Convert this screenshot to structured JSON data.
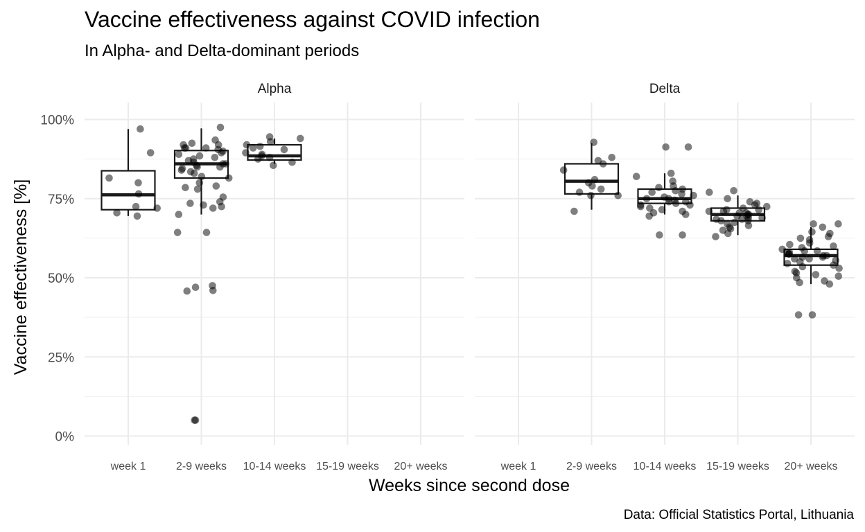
{
  "chart_data": {
    "type": "box+jitter",
    "title": "Vaccine effectiveness against COVID infection",
    "subtitle": "In Alpha- and Delta-dominant periods",
    "xlabel": "Weeks since second dose",
    "ylabel": "Vaccine effectiveness [%]",
    "caption": "Data: Official Statistics Portal, Lithuania",
    "ylim": [
      0,
      100
    ],
    "yticks": [
      "0%",
      "25%",
      "50%",
      "75%",
      "100%"
    ],
    "ytick_values": [
      0,
      25,
      50,
      75,
      100
    ],
    "categories": [
      "week 1",
      "2-9 weeks",
      "10-14 weeks",
      "15-19 weeks",
      "20+ weeks"
    ],
    "grid": true,
    "facets": [
      {
        "name": "Alpha",
        "boxes": [
          {
            "category": "week 1",
            "min": 69.5,
            "q1": 71.5,
            "median": 76.2,
            "q3": 83.8,
            "max": 97
          },
          {
            "category": "2-9 weeks",
            "min": 70,
            "q1": 81.5,
            "median": 86,
            "q3": 90.2,
            "max": 97.2
          },
          {
            "category": "10-14 weeks",
            "min": 86,
            "q1": 87.2,
            "median": 88.5,
            "q3": 92,
            "max": 94
          }
        ],
        "points": [
          {
            "category": "week 1",
            "values": [
              69.5,
              70.5,
              72.5,
              72,
              76.5,
              80,
              81.5,
              89.5,
              97
            ]
          },
          {
            "category": "2-9 weeks",
            "values": [
              97.5,
              93.5,
              92.5,
              92,
              92,
              91,
              91,
              91,
              90.5,
              90,
              89.5,
              89,
              88.5,
              88,
              87.5,
              87,
              86.5,
              86,
              86,
              85.5,
              85,
              85,
              84.5,
              84,
              83.5,
              83,
              82,
              81.5,
              80,
              79,
              78.5,
              78,
              75.5,
              74,
              73.5,
              73,
              72.5,
              72,
              70,
              64.3,
              64.3,
              47.5,
              47,
              46,
              45.8,
              5,
              5
            ]
          },
          {
            "category": "10-14 weeks",
            "values": [
              94.5,
              94,
              93,
              92,
              91.5,
              91,
              90.5,
              89.5,
              89,
              88.5,
              88,
              87.5,
              86.5,
              85.5
            ]
          }
        ]
      },
      {
        "name": "Delta",
        "boxes": [
          {
            "category": "2-9 weeks",
            "min": 71.5,
            "q1": 76.5,
            "median": 80.5,
            "q3": 86,
            "max": 92.5
          },
          {
            "category": "10-14 weeks",
            "min": 70,
            "q1": 73.5,
            "median": 75,
            "q3": 78,
            "max": 83
          },
          {
            "category": "15-19 weeks",
            "min": 63.5,
            "q1": 68,
            "median": 70,
            "q3": 72,
            "max": 76
          },
          {
            "category": "20+ weeks",
            "min": 48,
            "q1": 54,
            "median": 57,
            "q3": 59,
            "max": 66
          }
        ],
        "points": [
          {
            "category": "2-9 weeks",
            "values": [
              92.8,
              88,
              87,
              86,
              84,
              81,
              80,
              79,
              78,
              77,
              76,
              76,
              71
            ]
          },
          {
            "category": "10-14 weeks",
            "values": [
              91.3,
              91.3,
              83,
              82,
              80.5,
              79,
              78.5,
              78,
              77.5,
              77,
              76.5,
              76,
              75.5,
              75,
              75,
              74.5,
              74,
              74,
              73.5,
              73,
              73,
              72.5,
              72,
              71.5,
              71,
              70.5,
              70,
              69.5,
              63.5,
              63.5
            ]
          },
          {
            "category": "15-19 weeks",
            "values": [
              77.5,
              77,
              75,
              74,
              73.5,
              73,
              72.5,
              72,
              71.5,
              71.5,
              71,
              71,
              70.5,
              70.5,
              70,
              70,
              69.5,
              69.5,
              69,
              69,
              68.5,
              68.5,
              68,
              68,
              67.5,
              67,
              66.5,
              66,
              65.5,
              65,
              64,
              63
            ]
          },
          {
            "category": "20+ weeks",
            "values": [
              67,
              67,
              66,
              64.5,
              64,
              63,
              62.5,
              62,
              61,
              60.5,
              60,
              59.5,
              59,
              58.5,
              58.5,
              58,
              58,
              57.5,
              57.5,
              57,
              57,
              56.5,
              56.5,
              56,
              56,
              55.5,
              55,
              54.5,
              54,
              53.5,
              53,
              52,
              51.5,
              51,
              50.5,
              50,
              49,
              48.5,
              48,
              38.3,
              38.3
            ]
          }
        ]
      }
    ]
  }
}
